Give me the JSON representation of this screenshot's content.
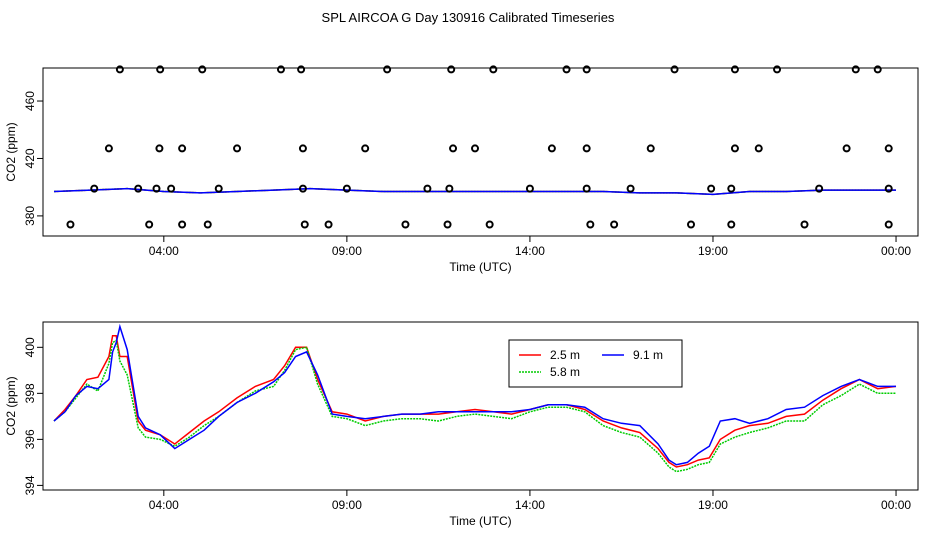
{
  "title": "SPL AIRCOA G  Day 130916  Calibrated Timeseries",
  "colors": {
    "s1": "#ff0000",
    "s2": "#00cc00",
    "s3": "#0000ff",
    "axis": "#000000"
  },
  "chart_data": [
    {
      "type": "scatter",
      "xlabel": "Time (UTC)",
      "ylabel": "CO2 (ppm)",
      "xlim": [
        -0.3,
        23.6
      ],
      "ylim": [
        366,
        483
      ],
      "xticks": [
        {
          "value": 3,
          "label": "04:00"
        },
        {
          "value": 8,
          "label": "09:00"
        },
        {
          "value": 13,
          "label": "14:00"
        },
        {
          "value": 18,
          "label": "19:00"
        },
        {
          "value": 23,
          "label": "00:00"
        }
      ],
      "yticks": [
        380,
        420,
        460
      ],
      "points": [
        [
          0.45,
          374
        ],
        [
          1.1,
          399
        ],
        [
          1.5,
          427
        ],
        [
          1.8,
          482
        ],
        [
          2.3,
          399
        ],
        [
          2.6,
          374
        ],
        [
          2.8,
          399
        ],
        [
          2.88,
          427
        ],
        [
          2.9,
          482
        ],
        [
          3.5,
          427
        ],
        [
          3.2,
          399
        ],
        [
          3.5,
          374
        ],
        [
          4.05,
          482
        ],
        [
          4.2,
          374
        ],
        [
          4.5,
          399
        ],
        [
          5.0,
          427
        ],
        [
          6.2,
          482
        ],
        [
          6.75,
          482
        ],
        [
          6.8,
          427
        ],
        [
          6.8,
          399
        ],
        [
          6.85,
          374
        ],
        [
          7.5,
          374
        ],
        [
          8.0,
          399
        ],
        [
          8.5,
          427
        ],
        [
          9.1,
          482
        ],
        [
          9.6,
          374
        ],
        [
          10.2,
          399
        ],
        [
          10.8,
          399
        ],
        [
          10.75,
          374
        ],
        [
          10.85,
          482
        ],
        [
          10.9,
          427
        ],
        [
          11.5,
          427
        ],
        [
          12.0,
          482
        ],
        [
          11.9,
          374
        ],
        [
          13.0,
          399
        ],
        [
          13.6,
          427
        ],
        [
          14.0,
          482
        ],
        [
          14.55,
          482
        ],
        [
          14.55,
          399
        ],
        [
          14.55,
          427
        ],
        [
          14.65,
          374
        ],
        [
          15.3,
          374
        ],
        [
          15.75,
          399
        ],
        [
          16.3,
          427
        ],
        [
          16.95,
          482
        ],
        [
          17.4,
          374
        ],
        [
          17.95,
          399
        ],
        [
          18.6,
          427
        ],
        [
          18.5,
          399
        ],
        [
          18.5,
          374
        ],
        [
          18.6,
          482
        ],
        [
          19.25,
          427
        ],
        [
          19.75,
          482
        ],
        [
          20.5,
          374
        ],
        [
          20.9,
          399
        ],
        [
          21.65,
          427
        ],
        [
          21.9,
          482
        ],
        [
          22.5,
          482
        ],
        [
          22.8,
          427
        ],
        [
          22.8,
          399
        ],
        [
          22.8,
          374
        ]
      ],
      "series": [
        {
          "name": "2.5 m",
          "x": [
            0,
            1,
            2,
            3,
            4,
            5,
            6,
            7,
            8,
            9,
            10,
            11,
            12,
            13,
            14,
            15,
            16,
            17,
            18,
            19,
            20,
            21,
            22,
            23
          ],
          "values": [
            397,
            398,
            399,
            397,
            396,
            397,
            398,
            399,
            398,
            397,
            397,
            397,
            397,
            397,
            397,
            397,
            396,
            396,
            395,
            397,
            397,
            398,
            398,
            398
          ]
        },
        {
          "name": "5.8 m",
          "x": [
            0,
            1,
            2,
            3,
            4,
            5,
            6,
            7,
            8,
            9,
            10,
            11,
            12,
            13,
            14,
            15,
            16,
            17,
            18,
            19,
            20,
            21,
            22,
            23
          ],
          "values": [
            397,
            398,
            399,
            397,
            396,
            397,
            398,
            399,
            398,
            397,
            397,
            397,
            397,
            397,
            397,
            397,
            396,
            396,
            395,
            397,
            397,
            398,
            398,
            398
          ]
        },
        {
          "name": "9.1 m",
          "x": [
            0,
            1,
            2,
            3,
            4,
            5,
            6,
            7,
            8,
            9,
            10,
            11,
            12,
            13,
            14,
            15,
            16,
            17,
            18,
            19,
            20,
            21,
            22,
            23
          ],
          "values": [
            397,
            398,
            399,
            397,
            396,
            397,
            398,
            399,
            398,
            397,
            397,
            397,
            397,
            397,
            397,
            397,
            396,
            396,
            395,
            397,
            397,
            398,
            398,
            398
          ]
        }
      ]
    },
    {
      "type": "line",
      "xlabel": "Time (UTC)",
      "ylabel": "CO2 (ppm)",
      "xlim": [
        -0.3,
        23.6
      ],
      "ylim": [
        393.8,
        401.1
      ],
      "xticks": [
        {
          "value": 3,
          "label": "04:00"
        },
        {
          "value": 8,
          "label": "09:00"
        },
        {
          "value": 13,
          "label": "14:00"
        },
        {
          "value": 18,
          "label": "19:00"
        },
        {
          "value": 23,
          "label": "00:00"
        }
      ],
      "yticks": [
        394,
        396,
        398,
        400
      ],
      "legend": "top-center",
      "series": [
        {
          "name": "2.5 m",
          "x": [
            0,
            0.3,
            0.6,
            0.9,
            1.2,
            1.5,
            1.6,
            1.7,
            1.8,
            2.0,
            2.3,
            2.5,
            2.9,
            3.3,
            3.7,
            4.1,
            4.5,
            5.0,
            5.5,
            6.0,
            6.3,
            6.6,
            6.9,
            7.2,
            7.6,
            8.0,
            8.5,
            9.0,
            9.5,
            10.0,
            10.5,
            11.0,
            11.5,
            12.0,
            12.5,
            13.0,
            13.5,
            14.0,
            14.5,
            15.0,
            15.5,
            16.0,
            16.5,
            16.8,
            17.0,
            17.3,
            17.6,
            17.9,
            18.2,
            18.6,
            19.0,
            19.5,
            20.0,
            20.5,
            21.0,
            21.5,
            22.0,
            22.5,
            23.0
          ],
          "values": [
            396.8,
            397.3,
            397.9,
            398.6,
            398.7,
            399.6,
            400.5,
            400.5,
            399.6,
            399.6,
            396.8,
            396.4,
            396.2,
            395.8,
            396.3,
            396.8,
            397.2,
            397.8,
            398.3,
            398.6,
            399.2,
            400.0,
            400.0,
            398.6,
            397.2,
            397.1,
            396.8,
            397.0,
            397.1,
            397.1,
            397.1,
            397.2,
            397.3,
            397.2,
            397.1,
            397.3,
            397.5,
            397.5,
            397.3,
            396.8,
            396.5,
            396.3,
            395.6,
            395.0,
            394.8,
            394.9,
            395.1,
            395.2,
            396.0,
            396.4,
            396.6,
            396.7,
            397.0,
            397.1,
            397.7,
            398.2,
            398.6,
            398.2,
            398.3
          ]
        },
        {
          "name": "5.8 m",
          "x": [
            0,
            0.3,
            0.6,
            0.9,
            1.2,
            1.5,
            1.6,
            1.7,
            1.8,
            2.0,
            2.3,
            2.5,
            2.9,
            3.3,
            3.7,
            4.1,
            4.5,
            5.0,
            5.5,
            6.0,
            6.3,
            6.6,
            6.9,
            7.2,
            7.6,
            8.0,
            8.5,
            9.0,
            9.5,
            10.0,
            10.5,
            11.0,
            11.5,
            12.0,
            12.5,
            13.0,
            13.5,
            14.0,
            14.5,
            15.0,
            15.5,
            16.0,
            16.5,
            16.8,
            17.0,
            17.3,
            17.6,
            17.9,
            18.2,
            18.6,
            19.0,
            19.5,
            20.0,
            20.5,
            21.0,
            21.5,
            22.0,
            22.5,
            23.0
          ],
          "values": [
            396.8,
            397.2,
            397.8,
            398.4,
            398.1,
            399.3,
            400.2,
            400.3,
            399.4,
            398.8,
            396.5,
            396.1,
            396.0,
            395.7,
            396.1,
            396.6,
            397.0,
            397.6,
            398.1,
            398.3,
            399.0,
            399.9,
            400.0,
            398.4,
            397.0,
            396.9,
            396.6,
            396.8,
            396.9,
            396.9,
            396.8,
            397.0,
            397.1,
            397.0,
            396.9,
            397.2,
            397.4,
            397.4,
            397.2,
            396.6,
            396.3,
            396.1,
            395.4,
            394.8,
            394.6,
            394.7,
            394.9,
            395.0,
            395.8,
            396.1,
            396.3,
            396.5,
            396.8,
            396.8,
            397.5,
            397.9,
            398.4,
            398.0,
            398.0
          ]
        },
        {
          "name": "9.1 m",
          "x": [
            0,
            0.3,
            0.6,
            0.9,
            1.2,
            1.5,
            1.6,
            1.7,
            1.8,
            2.0,
            2.3,
            2.5,
            2.9,
            3.3,
            3.7,
            4.1,
            4.5,
            5.0,
            5.5,
            6.0,
            6.3,
            6.6,
            6.9,
            7.2,
            7.6,
            8.0,
            8.5,
            9.0,
            9.5,
            10.0,
            10.5,
            11.0,
            11.5,
            12.0,
            12.5,
            13.0,
            13.5,
            14.0,
            14.5,
            15.0,
            15.5,
            16.0,
            16.5,
            16.8,
            17.0,
            17.3,
            17.6,
            17.9,
            18.2,
            18.6,
            19.0,
            19.5,
            20.0,
            20.5,
            21.0,
            21.5,
            22.0,
            22.5,
            23.0
          ],
          "values": [
            396.8,
            397.2,
            397.9,
            398.3,
            398.2,
            398.6,
            399.8,
            400.2,
            400.9,
            399.9,
            397.0,
            396.5,
            396.2,
            395.6,
            396.0,
            396.4,
            397.0,
            397.6,
            398.0,
            398.5,
            398.9,
            399.6,
            399.8,
            398.8,
            397.1,
            397.0,
            396.9,
            397.0,
            397.1,
            397.1,
            397.2,
            397.2,
            397.2,
            397.2,
            397.2,
            397.3,
            397.5,
            397.5,
            397.4,
            396.9,
            396.7,
            396.6,
            395.8,
            395.1,
            394.9,
            395.0,
            395.4,
            395.7,
            396.8,
            396.9,
            396.7,
            396.9,
            397.3,
            397.4,
            397.9,
            398.3,
            398.6,
            398.3,
            398.3
          ]
        }
      ]
    }
  ]
}
